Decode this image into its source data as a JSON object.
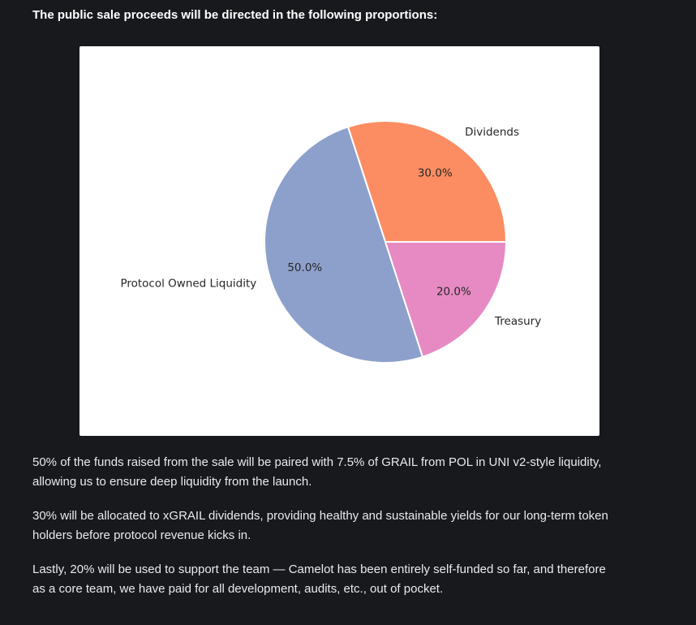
{
  "page": {
    "background": "#17191d",
    "heading": "The public sale proceeds will be directed in the following proportions:",
    "paragraphs": [
      {
        "lines": [
          "50% of the funds raised from the sale will be paired with 7.5% of GRAIL from POL in UNI v2-style liquidity,",
          "allowing us to ensure deep liquidity from the launch."
        ]
      },
      {
        "lines": [
          "30% will be allocated to xGRAIL dividends, providing healthy and sustainable yields for our long-term token",
          "holders before protocol revenue kicks in."
        ]
      },
      {
        "lines": [
          "Lastly, 20% will be used to support the team — Camelot has been entirely self-funded so far, and therefore",
          "as a core team, we have paid for all development, audits, etc., out of pocket."
        ]
      }
    ]
  },
  "chart_data": {
    "type": "pie",
    "title": "",
    "categories": [
      "Dividends",
      "Protocol Owned Liquidity",
      "Treasury"
    ],
    "values": [
      30.0,
      50.0,
      20.0
    ],
    "slices": [
      {
        "label": "Dividends",
        "value": 30.0,
        "pct_label": "30.0%",
        "color": "#FC8D62"
      },
      {
        "label": "Protocol Owned Liquidity",
        "value": 50.0,
        "pct_label": "50.0%",
        "color": "#8DA0CB"
      },
      {
        "label": "Treasury",
        "value": 20.0,
        "pct_label": "20.0%",
        "color": "#E78AC3"
      }
    ],
    "start_angle_deg": 0,
    "direction": "counterclockwise",
    "label_color": "#262626",
    "card_background": "#ffffff",
    "slice_edge_color": "#ffffff",
    "legend": "none"
  }
}
